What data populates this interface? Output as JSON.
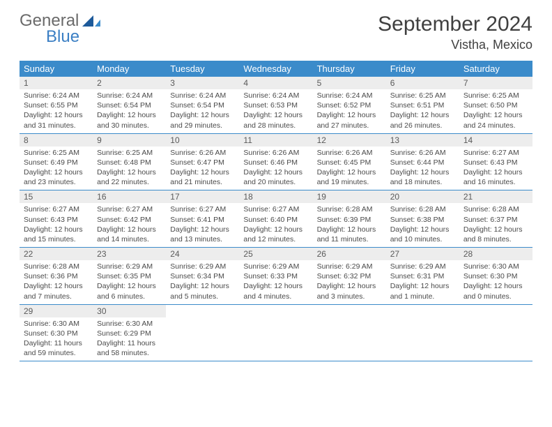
{
  "brand": {
    "general": "General",
    "blue": "Blue"
  },
  "title": "September 2024",
  "location": "Vistha, Mexico",
  "colors": {
    "header_bg": "#3b8bca",
    "header_text": "#ffffff",
    "daynum_bg": "#ededed",
    "daynum_text": "#5a5a5a",
    "body_text": "#4a4a4a",
    "rule": "#3b8bca",
    "title_text": "#404040",
    "logo_grey": "#6a6a6a",
    "logo_blue": "#3b7fc4"
  },
  "day_headers": [
    "Sunday",
    "Monday",
    "Tuesday",
    "Wednesday",
    "Thursday",
    "Friday",
    "Saturday"
  ],
  "weeks": [
    [
      {
        "n": "1",
        "sr": "Sunrise: 6:24 AM",
        "ss": "Sunset: 6:55 PM",
        "dl": "Daylight: 12 hours and 31 minutes."
      },
      {
        "n": "2",
        "sr": "Sunrise: 6:24 AM",
        "ss": "Sunset: 6:54 PM",
        "dl": "Daylight: 12 hours and 30 minutes."
      },
      {
        "n": "3",
        "sr": "Sunrise: 6:24 AM",
        "ss": "Sunset: 6:54 PM",
        "dl": "Daylight: 12 hours and 29 minutes."
      },
      {
        "n": "4",
        "sr": "Sunrise: 6:24 AM",
        "ss": "Sunset: 6:53 PM",
        "dl": "Daylight: 12 hours and 28 minutes."
      },
      {
        "n": "5",
        "sr": "Sunrise: 6:24 AM",
        "ss": "Sunset: 6:52 PM",
        "dl": "Daylight: 12 hours and 27 minutes."
      },
      {
        "n": "6",
        "sr": "Sunrise: 6:25 AM",
        "ss": "Sunset: 6:51 PM",
        "dl": "Daylight: 12 hours and 26 minutes."
      },
      {
        "n": "7",
        "sr": "Sunrise: 6:25 AM",
        "ss": "Sunset: 6:50 PM",
        "dl": "Daylight: 12 hours and 24 minutes."
      }
    ],
    [
      {
        "n": "8",
        "sr": "Sunrise: 6:25 AM",
        "ss": "Sunset: 6:49 PM",
        "dl": "Daylight: 12 hours and 23 minutes."
      },
      {
        "n": "9",
        "sr": "Sunrise: 6:25 AM",
        "ss": "Sunset: 6:48 PM",
        "dl": "Daylight: 12 hours and 22 minutes."
      },
      {
        "n": "10",
        "sr": "Sunrise: 6:26 AM",
        "ss": "Sunset: 6:47 PM",
        "dl": "Daylight: 12 hours and 21 minutes."
      },
      {
        "n": "11",
        "sr": "Sunrise: 6:26 AM",
        "ss": "Sunset: 6:46 PM",
        "dl": "Daylight: 12 hours and 20 minutes."
      },
      {
        "n": "12",
        "sr": "Sunrise: 6:26 AM",
        "ss": "Sunset: 6:45 PM",
        "dl": "Daylight: 12 hours and 19 minutes."
      },
      {
        "n": "13",
        "sr": "Sunrise: 6:26 AM",
        "ss": "Sunset: 6:44 PM",
        "dl": "Daylight: 12 hours and 18 minutes."
      },
      {
        "n": "14",
        "sr": "Sunrise: 6:27 AM",
        "ss": "Sunset: 6:43 PM",
        "dl": "Daylight: 12 hours and 16 minutes."
      }
    ],
    [
      {
        "n": "15",
        "sr": "Sunrise: 6:27 AM",
        "ss": "Sunset: 6:43 PM",
        "dl": "Daylight: 12 hours and 15 minutes."
      },
      {
        "n": "16",
        "sr": "Sunrise: 6:27 AM",
        "ss": "Sunset: 6:42 PM",
        "dl": "Daylight: 12 hours and 14 minutes."
      },
      {
        "n": "17",
        "sr": "Sunrise: 6:27 AM",
        "ss": "Sunset: 6:41 PM",
        "dl": "Daylight: 12 hours and 13 minutes."
      },
      {
        "n": "18",
        "sr": "Sunrise: 6:27 AM",
        "ss": "Sunset: 6:40 PM",
        "dl": "Daylight: 12 hours and 12 minutes."
      },
      {
        "n": "19",
        "sr": "Sunrise: 6:28 AM",
        "ss": "Sunset: 6:39 PM",
        "dl": "Daylight: 12 hours and 11 minutes."
      },
      {
        "n": "20",
        "sr": "Sunrise: 6:28 AM",
        "ss": "Sunset: 6:38 PM",
        "dl": "Daylight: 12 hours and 10 minutes."
      },
      {
        "n": "21",
        "sr": "Sunrise: 6:28 AM",
        "ss": "Sunset: 6:37 PM",
        "dl": "Daylight: 12 hours and 8 minutes."
      }
    ],
    [
      {
        "n": "22",
        "sr": "Sunrise: 6:28 AM",
        "ss": "Sunset: 6:36 PM",
        "dl": "Daylight: 12 hours and 7 minutes."
      },
      {
        "n": "23",
        "sr": "Sunrise: 6:29 AM",
        "ss": "Sunset: 6:35 PM",
        "dl": "Daylight: 12 hours and 6 minutes."
      },
      {
        "n": "24",
        "sr": "Sunrise: 6:29 AM",
        "ss": "Sunset: 6:34 PM",
        "dl": "Daylight: 12 hours and 5 minutes."
      },
      {
        "n": "25",
        "sr": "Sunrise: 6:29 AM",
        "ss": "Sunset: 6:33 PM",
        "dl": "Daylight: 12 hours and 4 minutes."
      },
      {
        "n": "26",
        "sr": "Sunrise: 6:29 AM",
        "ss": "Sunset: 6:32 PM",
        "dl": "Daylight: 12 hours and 3 minutes."
      },
      {
        "n": "27",
        "sr": "Sunrise: 6:29 AM",
        "ss": "Sunset: 6:31 PM",
        "dl": "Daylight: 12 hours and 1 minute."
      },
      {
        "n": "28",
        "sr": "Sunrise: 6:30 AM",
        "ss": "Sunset: 6:30 PM",
        "dl": "Daylight: 12 hours and 0 minutes."
      }
    ],
    [
      {
        "n": "29",
        "sr": "Sunrise: 6:30 AM",
        "ss": "Sunset: 6:30 PM",
        "dl": "Daylight: 11 hours and 59 minutes."
      },
      {
        "n": "30",
        "sr": "Sunrise: 6:30 AM",
        "ss": "Sunset: 6:29 PM",
        "dl": "Daylight: 11 hours and 58 minutes."
      },
      null,
      null,
      null,
      null,
      null
    ]
  ]
}
